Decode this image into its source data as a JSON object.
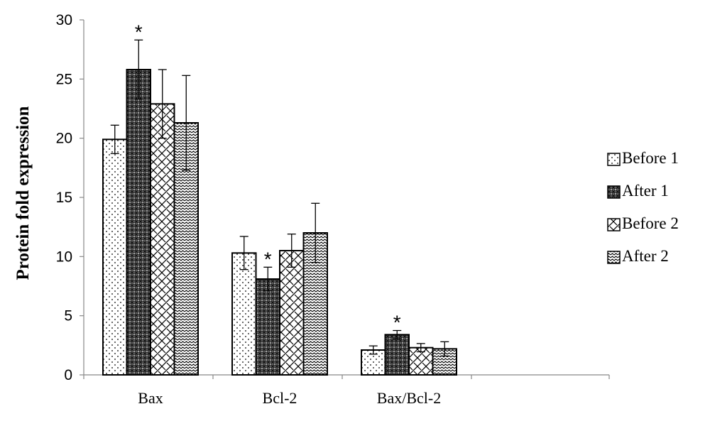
{
  "chart_data": {
    "type": "bar",
    "title": "",
    "xlabel": "",
    "ylabel": "Protein fold expression",
    "ylim": [
      0,
      30
    ],
    "yticks": [
      0,
      5,
      10,
      15,
      20,
      25,
      30
    ],
    "categories": [
      "Bax",
      "Bcl-2",
      "Bax/Bcl-2"
    ],
    "series": [
      {
        "name": "Before 1",
        "pattern": "dots",
        "values": [
          19.9,
          10.3,
          2.1
        ],
        "errors": [
          1.2,
          1.4,
          0.35
        ]
      },
      {
        "name": "After 1",
        "pattern": "dark-crosshatch",
        "values": [
          25.8,
          8.1,
          3.4
        ],
        "errors": [
          2.5,
          1.0,
          0.35
        ]
      },
      {
        "name": "Before 2",
        "pattern": "diagonal-weave",
        "values": [
          22.9,
          10.5,
          2.3
        ],
        "errors": [
          2.9,
          1.4,
          0.35
        ]
      },
      {
        "name": "After 2",
        "pattern": "zigzag",
        "values": [
          21.3,
          12.0,
          2.2
        ],
        "errors": [
          4.0,
          2.5,
          0.6
        ]
      }
    ],
    "annotations": [
      {
        "category": "Bax",
        "series": "After 1",
        "text": "*"
      },
      {
        "category": "Bcl-2",
        "series": "After 1",
        "text": "*"
      },
      {
        "category": "Bax/Bcl-2",
        "series": "After 1",
        "text": "*"
      }
    ],
    "grid": false,
    "legend_position": "right",
    "colors": {
      "bar_edge": "#000000",
      "background": "#ffffff",
      "pattern_ink": "#000000"
    }
  }
}
